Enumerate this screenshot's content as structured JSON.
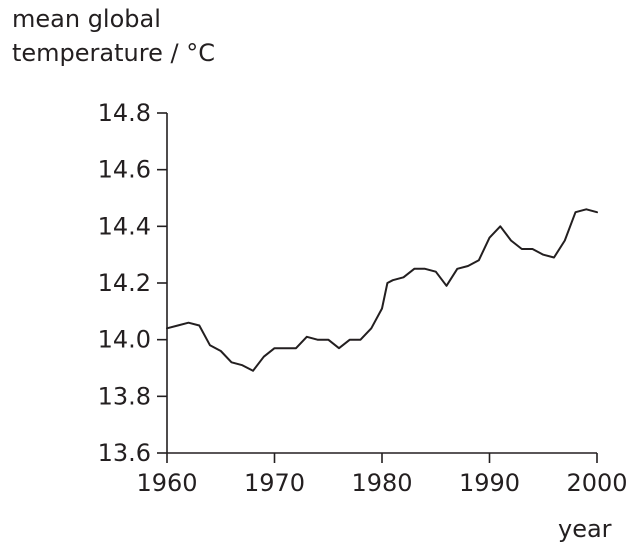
{
  "chart_data": {
    "type": "line",
    "ylabel_lines": [
      "mean global",
      "temperature / °C"
    ],
    "xlabel": "year",
    "xlim": [
      1960,
      2000
    ],
    "ylim": [
      13.6,
      14.8
    ],
    "x_ticks": [
      1960,
      1970,
      1980,
      1990,
      2000
    ],
    "y_ticks": [
      13.6,
      13.8,
      14.0,
      14.2,
      14.4,
      14.6,
      14.8
    ],
    "y_tick_labels": [
      "13.6",
      "13.8",
      "14.0",
      "14.2",
      "14.4",
      "14.6",
      "14.8"
    ],
    "grid": false,
    "series": [
      {
        "x": [
          1960,
          1961,
          1962,
          1963,
          1964,
          1965,
          1966,
          1967,
          1968,
          1969,
          1970,
          1971,
          1972,
          1973,
          1974,
          1975,
          1976,
          1977,
          1978,
          1979,
          1980,
          1980.5,
          1981,
          1982,
          1983,
          1984,
          1985,
          1986,
          1987,
          1988,
          1989,
          1990,
          1991,
          1992,
          1993,
          1994,
          1995,
          1996,
          1997,
          1998,
          1999,
          2000
        ],
        "y": [
          14.04,
          14.05,
          14.06,
          14.05,
          13.98,
          13.96,
          13.92,
          13.91,
          13.89,
          13.94,
          13.97,
          13.97,
          13.97,
          14.01,
          14.0,
          14.0,
          13.97,
          14.0,
          14.0,
          14.04,
          14.11,
          14.2,
          14.21,
          14.22,
          14.25,
          14.25,
          14.24,
          14.19,
          14.25,
          14.26,
          14.28,
          14.36,
          14.4,
          14.35,
          14.32,
          14.32,
          14.3,
          14.29,
          14.35,
          14.45,
          14.46,
          14.45
        ]
      }
    ]
  }
}
